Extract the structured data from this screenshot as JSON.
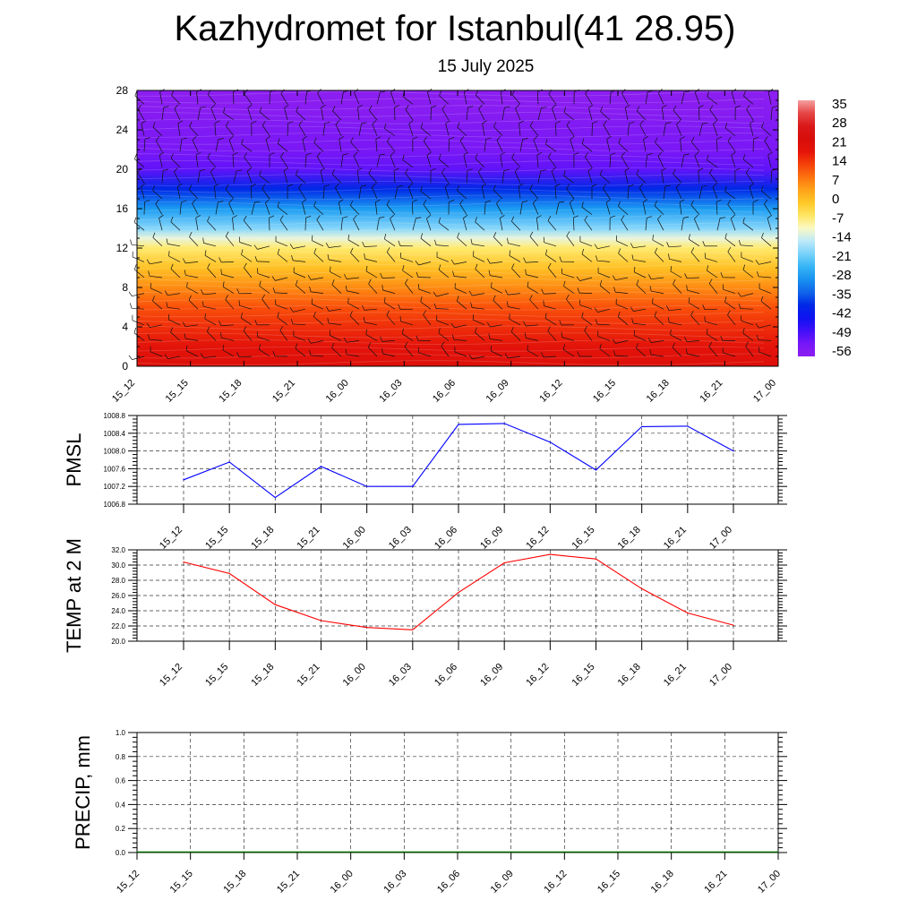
{
  "title": "Kazhydromet for Istanbul(41 28.95)",
  "subtitle": "15 July 2025",
  "time_labels": [
    "15_12",
    "15_15",
    "15_18",
    "15_21",
    "16_00",
    "16_03",
    "16_06",
    "16_09",
    "16_12",
    "16_15",
    "16_18",
    "16_21",
    "17_00"
  ],
  "colors": {
    "pmsl_line": "#0000ff",
    "temp_line": "#ff0000",
    "precip_line": "#006400",
    "grid": "#333333"
  },
  "chart_data": [
    {
      "type": "heatmap",
      "title": "",
      "xlabel": "",
      "ylabel": "",
      "x_categories": [
        "15_12",
        "15_15",
        "15_18",
        "15_21",
        "16_00",
        "16_03",
        "16_06",
        "16_09",
        "16_12",
        "16_15",
        "16_18",
        "16_21",
        "17_00"
      ],
      "ylim": [
        0,
        28
      ],
      "y_ticks": [
        0,
        4,
        8,
        12,
        16,
        20,
        24,
        28
      ],
      "colorbar": {
        "labels": [
          "35",
          "28",
          "21",
          "14",
          "7",
          "0",
          "-7",
          "-14",
          "-21",
          "-28",
          "-35",
          "-42",
          "-49",
          "-56"
        ],
        "range": [
          -63,
          42
        ]
      },
      "temperature_profile_by_level": {
        "levels": [
          0,
          2,
          4,
          6,
          8,
          10,
          12,
          13,
          14,
          16,
          18,
          20,
          22,
          24,
          26,
          28
        ],
        "values": [
          24,
          22,
          18,
          14,
          8,
          1,
          -6,
          -12,
          -20,
          -30,
          -42,
          -55,
          -59,
          -60,
          -62,
          -63
        ]
      },
      "overlay": "wind barbs"
    },
    {
      "type": "line",
      "ylabel": "PMSL",
      "categories": [
        "15_12",
        "15_15",
        "15_18",
        "15_21",
        "16_00",
        "16_03",
        "16_06",
        "16_09",
        "16_12",
        "16_15",
        "16_18",
        "16_21",
        "17_00"
      ],
      "values": [
        1007.35,
        1007.75,
        1006.95,
        1007.65,
        1007.2,
        1007.2,
        1008.6,
        1008.62,
        1008.2,
        1007.57,
        1008.55,
        1008.56,
        1008.0
      ],
      "ylim": [
        1006.8,
        1008.8
      ],
      "y_ticks": [
        "1006.8",
        "1007.2",
        "1007.6",
        "1008.0",
        "1008.4",
        "1008.8"
      ],
      "grid": true
    },
    {
      "type": "line",
      "ylabel": "TEMP at 2 M",
      "categories": [
        "15_12",
        "15_15",
        "15_18",
        "15_21",
        "16_00",
        "16_03",
        "16_06",
        "16_09",
        "16_12",
        "16_15",
        "16_18",
        "16_21",
        "17_00"
      ],
      "values": [
        30.4,
        28.9,
        24.8,
        22.7,
        21.8,
        21.5,
        26.4,
        30.3,
        31.4,
        30.8,
        26.9,
        23.7,
        22.1
      ],
      "ylim": [
        20.0,
        32.0
      ],
      "y_ticks": [
        "20.0",
        "22.0",
        "24.0",
        "26.0",
        "28.0",
        "30.0",
        "32.0"
      ],
      "grid": true
    },
    {
      "type": "line",
      "ylabel": "PRECIP, mm",
      "categories": [
        "15_12",
        "15_15",
        "15_18",
        "15_21",
        "16_00",
        "16_03",
        "16_06",
        "16_09",
        "16_12",
        "16_15",
        "16_18",
        "16_21",
        "17_00"
      ],
      "values": [
        0,
        0,
        0,
        0,
        0,
        0,
        0,
        0,
        0,
        0,
        0,
        0,
        0
      ],
      "ylim": [
        0.0,
        1.0
      ],
      "y_ticks": [
        "0.0",
        "0.2",
        "0.4",
        "0.6",
        "0.8",
        "1.0"
      ],
      "grid": true
    }
  ]
}
